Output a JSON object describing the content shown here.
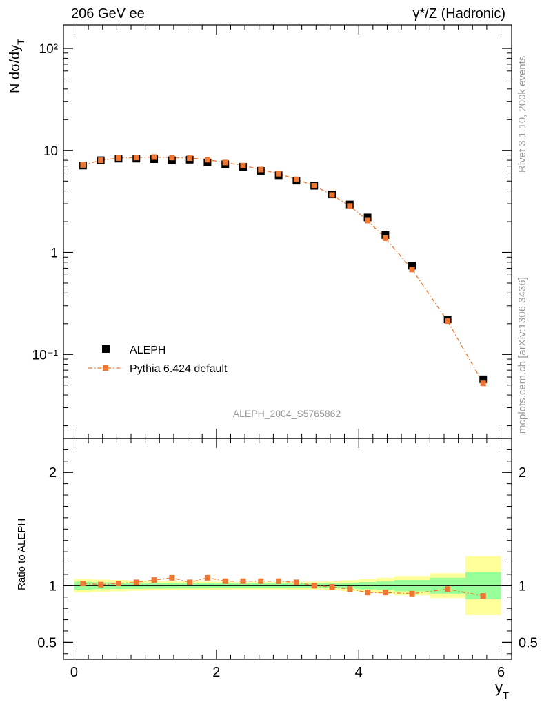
{
  "header": {
    "left": "206 GeV ee",
    "right": "γ*/Z (Hadronic)"
  },
  "side_labels": {
    "rivet": "Rivet 3.1.10,  200k events",
    "mcplots": "mcplots.cern.ch [arXiv:1306.3436]"
  },
  "watermark": "ALEPH_2004_S5765862",
  "chart_data": [
    {
      "type": "scatter",
      "panel": "main",
      "yscale": "log",
      "ylabel": "N dσ/dy_T",
      "ylim": [
        0.015,
        170
      ],
      "xlim": [
        -0.15,
        6.15
      ],
      "yticks": [
        {
          "value": 0.1,
          "label": "10⁻¹"
        },
        {
          "value": 1,
          "label": "1"
        },
        {
          "value": 10,
          "label": "10"
        },
        {
          "value": 100,
          "label": "10²"
        }
      ],
      "legend": {
        "placement": "bottom-left"
      },
      "series": [
        {
          "name": "ALEPH",
          "marker": "square",
          "color": "#000000",
          "x": [
            0.125,
            0.375,
            0.625,
            0.875,
            1.125,
            1.375,
            1.625,
            1.875,
            2.125,
            2.375,
            2.625,
            2.875,
            3.125,
            3.375,
            3.625,
            3.875,
            4.125,
            4.375,
            4.75,
            5.25,
            5.75
          ],
          "y": [
            7.1,
            8.0,
            8.3,
            8.3,
            8.2,
            8.0,
            8.1,
            7.6,
            7.3,
            6.9,
            6.3,
            5.7,
            5.05,
            4.5,
            3.7,
            2.95,
            2.2,
            1.48,
            0.74,
            0.22,
            0.057
          ]
        },
        {
          "name": "Pythia 6.424 default",
          "marker": "square-small",
          "line": "dash-dot",
          "color": "#ee7733",
          "x": [
            0.125,
            0.375,
            0.625,
            0.875,
            1.125,
            1.375,
            1.625,
            1.875,
            2.125,
            2.375,
            2.625,
            2.875,
            3.125,
            3.375,
            3.625,
            3.875,
            4.125,
            4.375,
            4.75,
            5.25,
            5.75
          ],
          "y": [
            7.2,
            8.0,
            8.4,
            8.5,
            8.6,
            8.5,
            8.4,
            8.1,
            7.6,
            7.1,
            6.5,
            5.9,
            5.2,
            4.5,
            3.65,
            2.85,
            2.05,
            1.38,
            0.68,
            0.212,
            0.052
          ]
        }
      ]
    },
    {
      "type": "line",
      "panel": "ratio",
      "ylabel": "Ratio to ALEPH",
      "ylim": [
        0.35,
        2.3
      ],
      "xlim": [
        -0.15,
        6.15
      ],
      "xlabel": "y_T",
      "yticks": [
        0.5,
        1,
        2
      ],
      "xticks": [
        0,
        2,
        4,
        6
      ],
      "bands": {
        "edges": [
          0,
          0.25,
          0.5,
          0.75,
          1.0,
          1.25,
          1.5,
          1.75,
          2.0,
          2.25,
          2.5,
          2.75,
          3.0,
          3.25,
          3.5,
          3.75,
          4.0,
          4.25,
          4.5,
          5.0,
          5.5,
          6.0
        ],
        "green_halfwidth": [
          0.035,
          0.03,
          0.028,
          0.027,
          0.026,
          0.025,
          0.024,
          0.023,
          0.022,
          0.021,
          0.021,
          0.021,
          0.022,
          0.023,
          0.024,
          0.027,
          0.032,
          0.038,
          0.05,
          0.07,
          0.12
        ],
        "yellow_halfwidth": [
          0.06,
          0.055,
          0.05,
          0.045,
          0.042,
          0.04,
          0.038,
          0.036,
          0.034,
          0.032,
          0.032,
          0.032,
          0.034,
          0.036,
          0.04,
          0.048,
          0.058,
          0.07,
          0.085,
          0.11,
          0.26
        ],
        "green_color": "#99ff99",
        "yellow_color": "#ffff99"
      },
      "series": [
        {
          "name": "Pythia 6.424 default",
          "color": "#ee7733",
          "x": [
            0.125,
            0.375,
            0.625,
            0.875,
            1.125,
            1.375,
            1.625,
            1.875,
            2.125,
            2.375,
            2.625,
            2.875,
            3.125,
            3.375,
            3.625,
            3.875,
            4.125,
            4.375,
            4.75,
            5.25,
            5.75
          ],
          "y": [
            1.02,
            1.01,
            1.02,
            1.03,
            1.05,
            1.07,
            1.03,
            1.07,
            1.04,
            1.04,
            1.04,
            1.04,
            1.03,
            1.0,
            0.99,
            0.97,
            0.94,
            0.94,
            0.93,
            0.97,
            0.91
          ]
        }
      ]
    }
  ]
}
